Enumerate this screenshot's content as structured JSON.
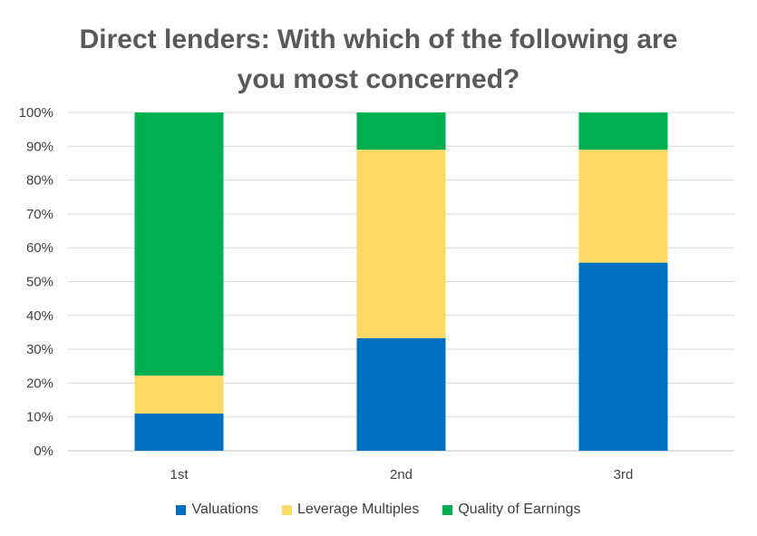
{
  "chart_data": {
    "type": "bar",
    "stacked": "percent",
    "title": "Direct lenders: With which of the following are you most concerned?",
    "title_lines": [
      "Direct lenders: With which of the following are",
      "you most concerned?"
    ],
    "categories": [
      "1st",
      "2nd",
      "3rd"
    ],
    "series": [
      {
        "name": "Valuations",
        "color": "#0070C0",
        "values": [
          11,
          33.3,
          55.6
        ]
      },
      {
        "name": "Leverage Multiples",
        "color": "#FFD966",
        "values": [
          11.2,
          55.7,
          33.4
        ]
      },
      {
        "name": "Quality of Earnings",
        "color": "#00B050",
        "values": [
          77.8,
          11,
          11
        ]
      }
    ],
    "ylim": [
      0,
      100
    ],
    "yticks": [
      "0%",
      "10%",
      "20%",
      "30%",
      "40%",
      "50%",
      "60%",
      "70%",
      "80%",
      "90%",
      "100%"
    ],
    "grid": true,
    "legend": "bottom"
  }
}
